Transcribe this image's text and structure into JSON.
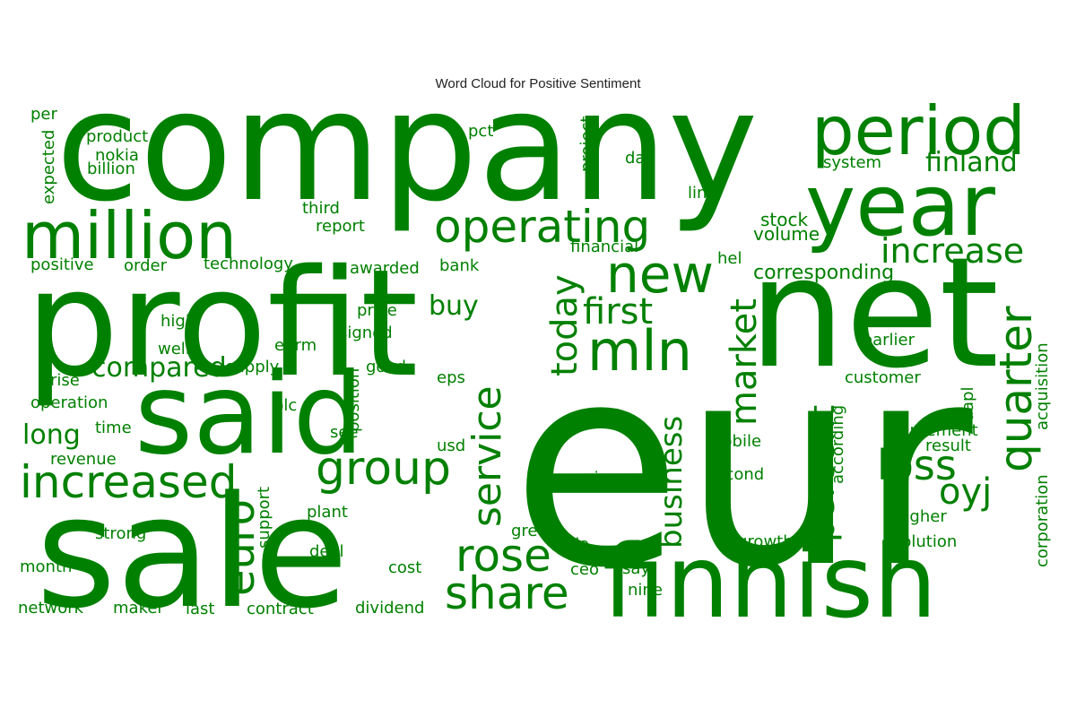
{
  "chart_data": {
    "type": "wordcloud",
    "title": "Word Cloud for Positive Sentiment",
    "color": "#008000",
    "words": [
      {
        "text": "company",
        "rotated": false
      },
      {
        "text": "eur",
        "rotated": false
      },
      {
        "text": "profit",
        "rotated": false
      },
      {
        "text": "sale",
        "rotated": false
      },
      {
        "text": "net",
        "rotated": false
      },
      {
        "text": "said",
        "rotated": false
      },
      {
        "text": "year",
        "rotated": false
      },
      {
        "text": "finnish",
        "rotated": false
      },
      {
        "text": "period",
        "rotated": false
      },
      {
        "text": "million",
        "rotated": false
      },
      {
        "text": "new",
        "rotated": false
      },
      {
        "text": "mln",
        "rotated": false
      },
      {
        "text": "increased",
        "rotated": false
      },
      {
        "text": "operating",
        "rotated": false
      },
      {
        "text": "share",
        "rotated": false
      },
      {
        "text": "group",
        "rotated": false
      },
      {
        "text": "rose",
        "rotated": false
      },
      {
        "text": "quarter",
        "rotated": true
      },
      {
        "text": "service",
        "rotated": true
      },
      {
        "text": "euro",
        "rotated": true
      },
      {
        "text": "loss",
        "rotated": false
      },
      {
        "text": "increase",
        "rotated": false
      },
      {
        "text": "first",
        "rotated": false
      },
      {
        "text": "market",
        "rotated": true
      },
      {
        "text": "percent",
        "rotated": true
      },
      {
        "text": "today",
        "rotated": true
      },
      {
        "text": "oyj",
        "rotated": false
      },
      {
        "text": "business",
        "rotated": true
      },
      {
        "text": "compared",
        "rotated": false
      },
      {
        "text": "finland",
        "rotated": false
      },
      {
        "text": "buy",
        "rotated": false
      },
      {
        "text": "long",
        "rotated": false
      },
      {
        "text": "corresponding",
        "rotated": false
      },
      {
        "text": "corporation",
        "rotated": true
      },
      {
        "text": "stock",
        "rotated": false
      },
      {
        "text": "volume",
        "rotated": false
      },
      {
        "text": "acquisition",
        "rotated": true
      },
      {
        "text": "expected",
        "rotated": true
      },
      {
        "text": "project",
        "rotated": true
      },
      {
        "text": "position",
        "rotated": true
      },
      {
        "text": "support",
        "rotated": true
      },
      {
        "text": "according",
        "rotated": true
      },
      {
        "text": "aapl",
        "rotated": true
      },
      {
        "text": "per",
        "rotated": false
      },
      {
        "text": "product",
        "rotated": false
      },
      {
        "text": "nokia",
        "rotated": false
      },
      {
        "text": "billion",
        "rotated": false
      },
      {
        "text": "pct",
        "rotated": false
      },
      {
        "text": "day",
        "rotated": false
      },
      {
        "text": "system",
        "rotated": false
      },
      {
        "text": "line",
        "rotated": false
      },
      {
        "text": "third",
        "rotated": false
      },
      {
        "text": "report",
        "rotated": false
      },
      {
        "text": "financial",
        "rotated": false
      },
      {
        "text": "hel",
        "rotated": false
      },
      {
        "text": "positive",
        "rotated": false
      },
      {
        "text": "order",
        "rotated": false
      },
      {
        "text": "technology",
        "rotated": false
      },
      {
        "text": "awarded",
        "rotated": false
      },
      {
        "text": "bank",
        "rotated": false
      },
      {
        "text": "price",
        "rotated": false
      },
      {
        "text": "signed",
        "rotated": false
      },
      {
        "text": "high",
        "rotated": false
      },
      {
        "text": "well",
        "rotated": false
      },
      {
        "text": "eurm",
        "rotated": false
      },
      {
        "text": "earlier",
        "rotated": false
      },
      {
        "text": "rise",
        "rotated": false
      },
      {
        "text": "supply",
        "rotated": false
      },
      {
        "text": "good",
        "rotated": false
      },
      {
        "text": "eps",
        "rotated": false
      },
      {
        "text": "customer",
        "rotated": false
      },
      {
        "text": "operation",
        "rotated": false
      },
      {
        "text": "plc",
        "rotated": false
      },
      {
        "text": "time",
        "rotated": false
      },
      {
        "text": "see",
        "rotated": false
      },
      {
        "text": "agreement",
        "rotated": false
      },
      {
        "text": "revenue",
        "rotated": false
      },
      {
        "text": "usd",
        "rotated": false
      },
      {
        "text": "mobile",
        "rotated": false
      },
      {
        "text": "result",
        "rotated": false
      },
      {
        "text": "earnings",
        "rotated": false
      },
      {
        "text": "second",
        "rotated": false
      },
      {
        "text": "plant",
        "rotated": false
      },
      {
        "text": "higher",
        "rotated": false
      },
      {
        "text": "strong",
        "rotated": false
      },
      {
        "text": "grew",
        "rotated": false
      },
      {
        "text": "growth",
        "rotated": false
      },
      {
        "text": "deal",
        "rotated": false
      },
      {
        "text": "tsla",
        "rotated": false
      },
      {
        "text": "solution",
        "rotated": false
      },
      {
        "text": "month",
        "rotated": false
      },
      {
        "text": "cost",
        "rotated": false
      },
      {
        "text": "ceo",
        "rotated": false
      },
      {
        "text": "say",
        "rotated": false
      },
      {
        "text": "nine",
        "rotated": false
      },
      {
        "text": "network",
        "rotated": false
      },
      {
        "text": "maker",
        "rotated": false
      },
      {
        "text": "last",
        "rotated": false
      },
      {
        "text": "contract",
        "rotated": false
      },
      {
        "text": "dividend",
        "rotated": false
      }
    ]
  }
}
